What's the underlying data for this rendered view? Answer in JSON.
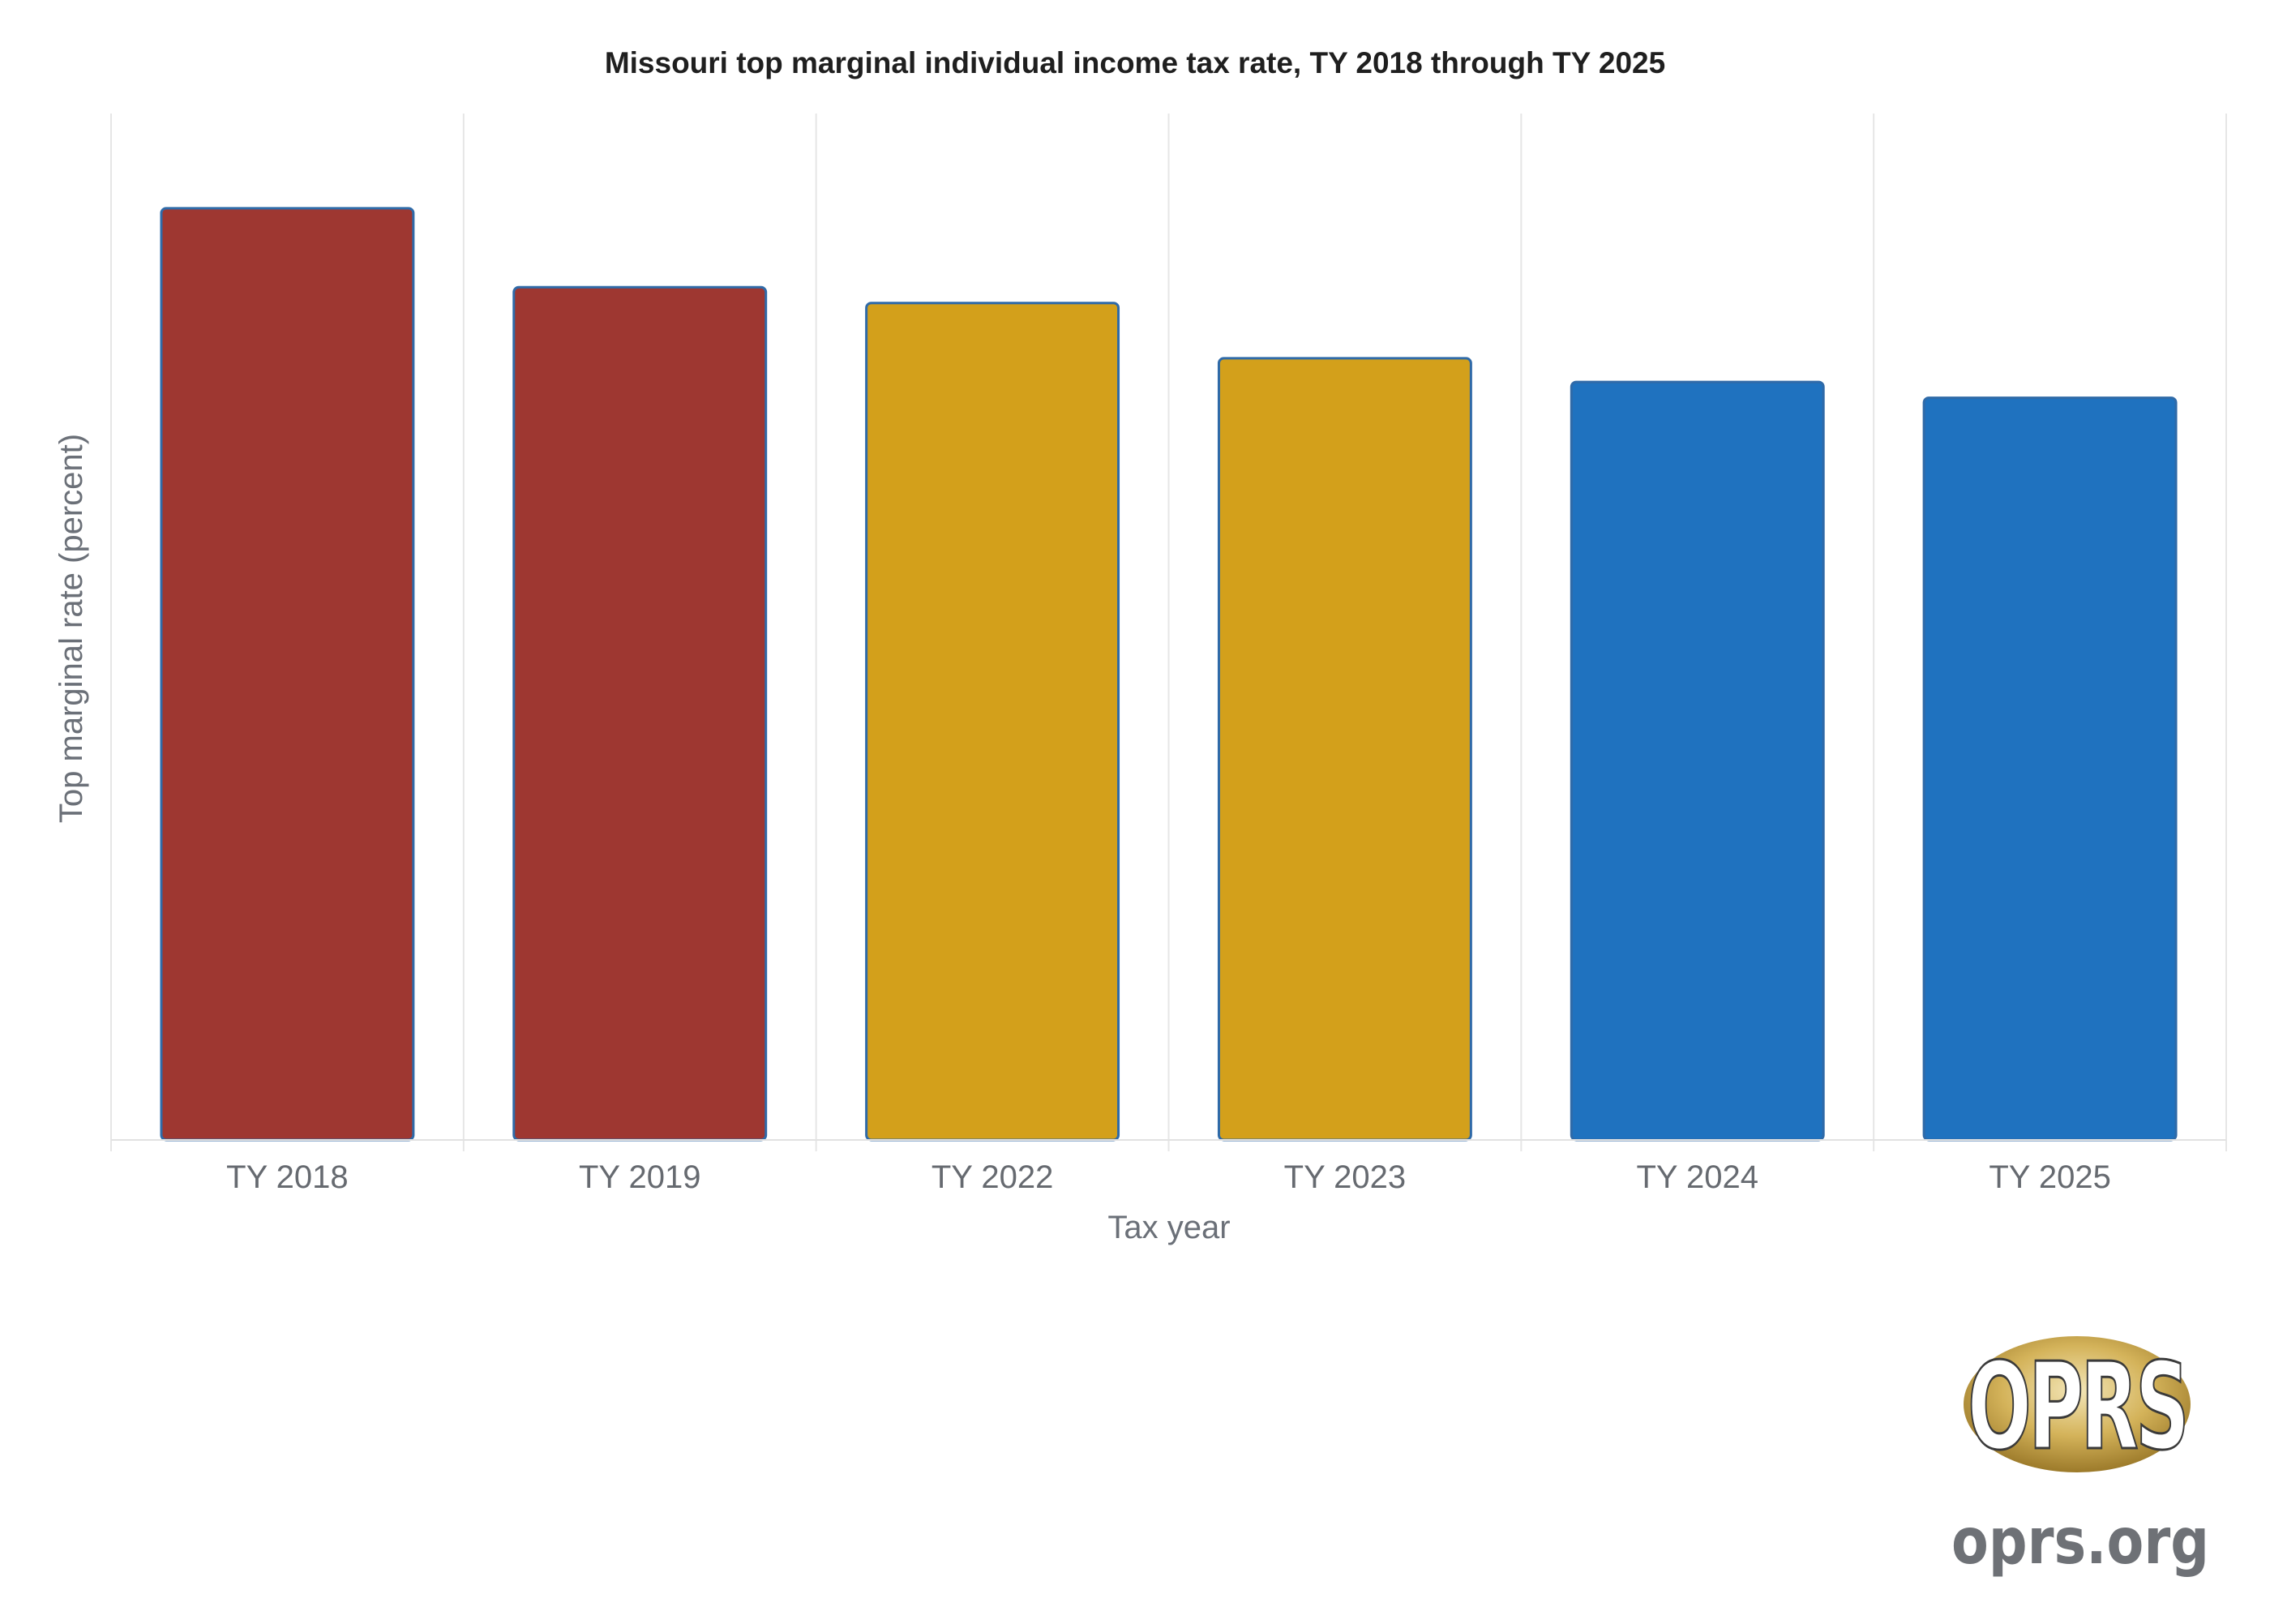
{
  "chart_data": {
    "type": "bar",
    "title": "Missouri top marginal individual income tax rate, TY 2018 through TY 2025",
    "xlabel": "Tax year",
    "ylabel": "Top marginal rate (percent)",
    "categories": [
      "TY 2018",
      "TY 2019",
      "TY 2022",
      "TY 2023",
      "TY 2024",
      "TY 2025"
    ],
    "values": [
      5.9,
      5.4,
      5.3,
      4.95,
      4.8,
      4.7
    ],
    "bar_colors": [
      "#9e3731",
      "#9e3731",
      "#d3a01b",
      "#d3a01b",
      "#1f72bf",
      "#1f72bf"
    ],
    "bar_outline_color": "#2f6aa8",
    "ylim": [
      0,
      6.5
    ],
    "y_tick_labels_visible": false,
    "grid": "vertical"
  },
  "logo": {
    "badge_text": "OPRS",
    "url_text": "oprs.org",
    "badge_color": "#c8a64b"
  }
}
